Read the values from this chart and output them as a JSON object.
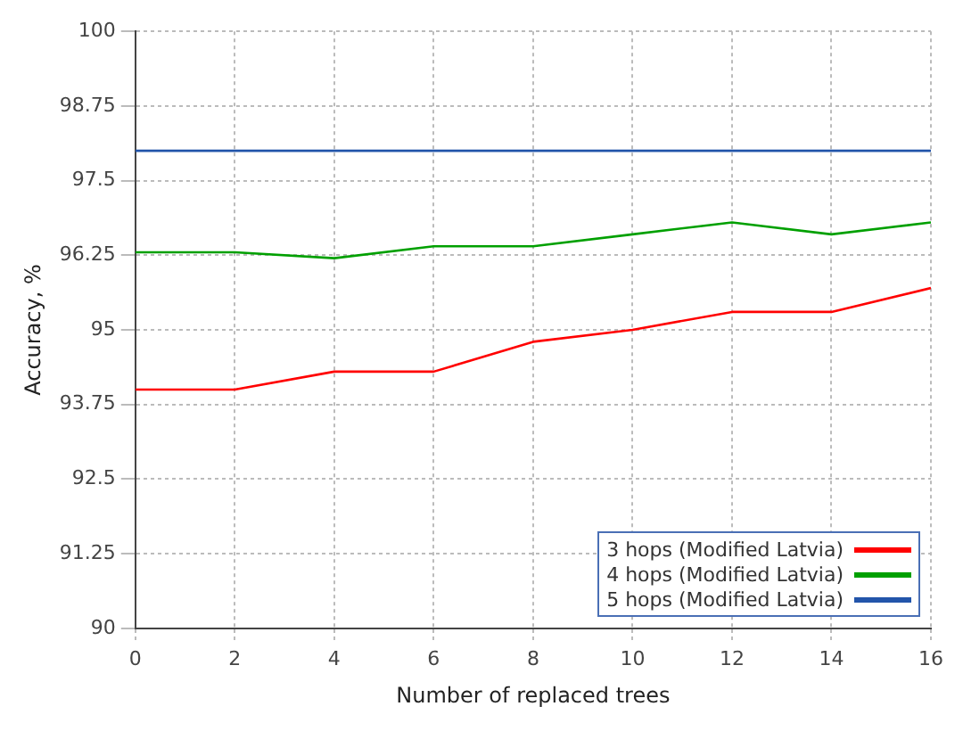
{
  "chart_data": {
    "type": "line",
    "xlabel": "Number of replaced trees",
    "ylabel": "Accuracy, %",
    "x": [
      0,
      2,
      4,
      6,
      8,
      10,
      12,
      14,
      16
    ],
    "series": [
      {
        "name": "3 hops (Modified Latvia)",
        "color": "#ff0000",
        "values": [
          94.0,
          94.0,
          94.3,
          94.3,
          94.8,
          95.0,
          95.3,
          95.3,
          95.7
        ]
      },
      {
        "name": "4 hops (Modified Latvia)",
        "color": "#00a000",
        "values": [
          96.3,
          96.3,
          96.2,
          96.4,
          96.4,
          96.6,
          96.8,
          96.6,
          96.8
        ]
      },
      {
        "name": "5 hops (Modified Latvia)",
        "color": "#2255aa",
        "values": [
          98,
          98,
          98,
          98,
          98,
          98,
          98,
          98,
          98
        ]
      }
    ],
    "xlim": [
      0,
      16
    ],
    "xticks": [
      0,
      2,
      4,
      6,
      8,
      10,
      12,
      14,
      16
    ],
    "ylim": [
      90,
      100
    ],
    "yticks": [
      90,
      91.25,
      92.5,
      93.75,
      95,
      96.25,
      97.5,
      98.75,
      100
    ],
    "grid": true,
    "legend": "bottom right",
    "marker": "none",
    "line_style": "solid"
  }
}
